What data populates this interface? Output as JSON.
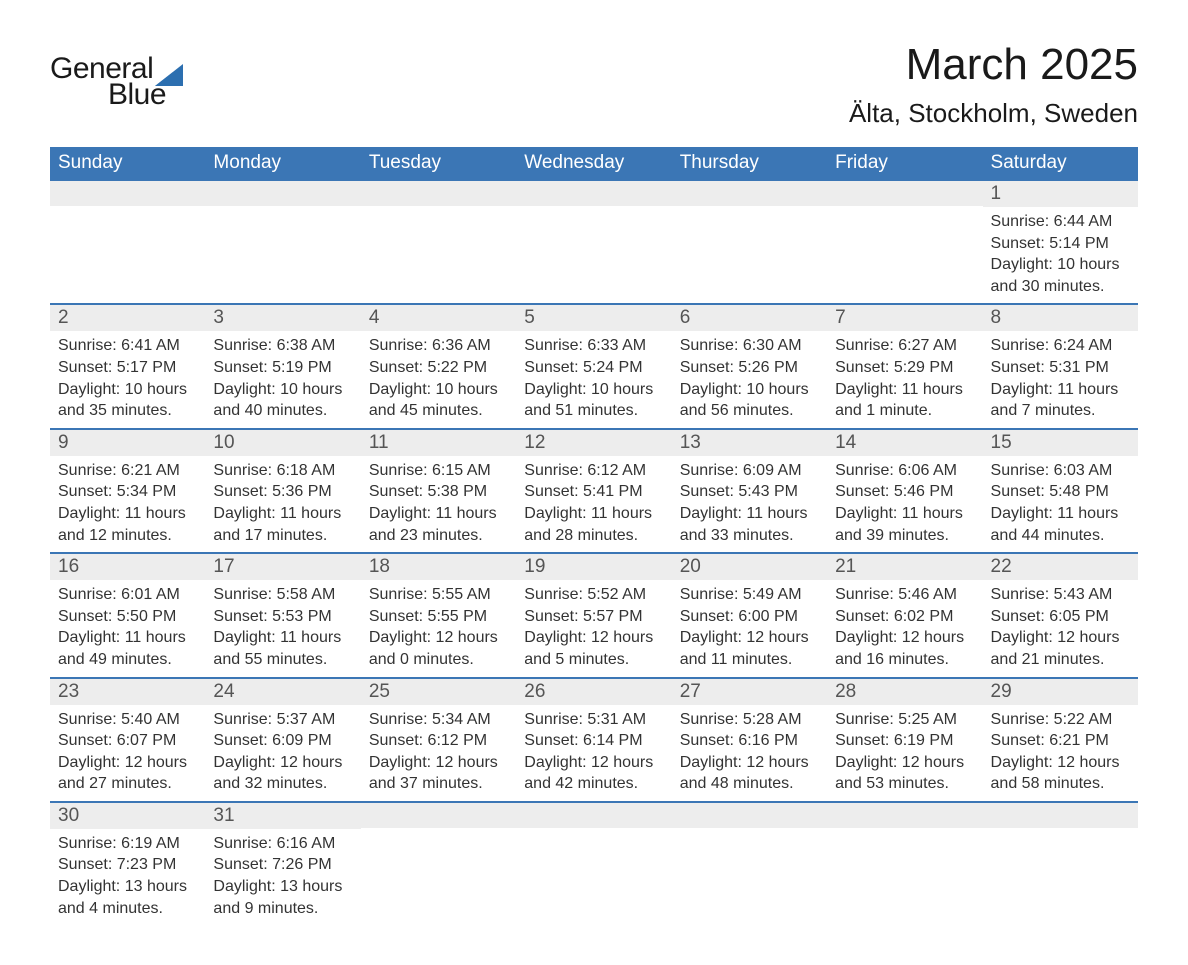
{
  "logo": {
    "text1": "General",
    "text2": "Blue",
    "shape_color": "#2c6fb0"
  },
  "header": {
    "month_title": "March 2025",
    "location": "Älta, Stockholm, Sweden"
  },
  "colors": {
    "header_bg": "#3b76b5",
    "header_text": "#ffffff",
    "daynum_bg": "#ededed",
    "daynum_text": "#555555",
    "body_text": "#333333",
    "row_border": "#3b76b5"
  },
  "day_names": [
    "Sunday",
    "Monday",
    "Tuesday",
    "Wednesday",
    "Thursday",
    "Friday",
    "Saturday"
  ],
  "weeks": [
    [
      {
        "day": "",
        "sunrise": "",
        "sunset": "",
        "daylight": ""
      },
      {
        "day": "",
        "sunrise": "",
        "sunset": "",
        "daylight": ""
      },
      {
        "day": "",
        "sunrise": "",
        "sunset": "",
        "daylight": ""
      },
      {
        "day": "",
        "sunrise": "",
        "sunset": "",
        "daylight": ""
      },
      {
        "day": "",
        "sunrise": "",
        "sunset": "",
        "daylight": ""
      },
      {
        "day": "",
        "sunrise": "",
        "sunset": "",
        "daylight": ""
      },
      {
        "day": "1",
        "sunrise": "Sunrise: 6:44 AM",
        "sunset": "Sunset: 5:14 PM",
        "daylight": "Daylight: 10 hours and 30 minutes."
      }
    ],
    [
      {
        "day": "2",
        "sunrise": "Sunrise: 6:41 AM",
        "sunset": "Sunset: 5:17 PM",
        "daylight": "Daylight: 10 hours and 35 minutes."
      },
      {
        "day": "3",
        "sunrise": "Sunrise: 6:38 AM",
        "sunset": "Sunset: 5:19 PM",
        "daylight": "Daylight: 10 hours and 40 minutes."
      },
      {
        "day": "4",
        "sunrise": "Sunrise: 6:36 AM",
        "sunset": "Sunset: 5:22 PM",
        "daylight": "Daylight: 10 hours and 45 minutes."
      },
      {
        "day": "5",
        "sunrise": "Sunrise: 6:33 AM",
        "sunset": "Sunset: 5:24 PM",
        "daylight": "Daylight: 10 hours and 51 minutes."
      },
      {
        "day": "6",
        "sunrise": "Sunrise: 6:30 AM",
        "sunset": "Sunset: 5:26 PM",
        "daylight": "Daylight: 10 hours and 56 minutes."
      },
      {
        "day": "7",
        "sunrise": "Sunrise: 6:27 AM",
        "sunset": "Sunset: 5:29 PM",
        "daylight": "Daylight: 11 hours and 1 minute."
      },
      {
        "day": "8",
        "sunrise": "Sunrise: 6:24 AM",
        "sunset": "Sunset: 5:31 PM",
        "daylight": "Daylight: 11 hours and 7 minutes."
      }
    ],
    [
      {
        "day": "9",
        "sunrise": "Sunrise: 6:21 AM",
        "sunset": "Sunset: 5:34 PM",
        "daylight": "Daylight: 11 hours and 12 minutes."
      },
      {
        "day": "10",
        "sunrise": "Sunrise: 6:18 AM",
        "sunset": "Sunset: 5:36 PM",
        "daylight": "Daylight: 11 hours and 17 minutes."
      },
      {
        "day": "11",
        "sunrise": "Sunrise: 6:15 AM",
        "sunset": "Sunset: 5:38 PM",
        "daylight": "Daylight: 11 hours and 23 minutes."
      },
      {
        "day": "12",
        "sunrise": "Sunrise: 6:12 AM",
        "sunset": "Sunset: 5:41 PM",
        "daylight": "Daylight: 11 hours and 28 minutes."
      },
      {
        "day": "13",
        "sunrise": "Sunrise: 6:09 AM",
        "sunset": "Sunset: 5:43 PM",
        "daylight": "Daylight: 11 hours and 33 minutes."
      },
      {
        "day": "14",
        "sunrise": "Sunrise: 6:06 AM",
        "sunset": "Sunset: 5:46 PM",
        "daylight": "Daylight: 11 hours and 39 minutes."
      },
      {
        "day": "15",
        "sunrise": "Sunrise: 6:03 AM",
        "sunset": "Sunset: 5:48 PM",
        "daylight": "Daylight: 11 hours and 44 minutes."
      }
    ],
    [
      {
        "day": "16",
        "sunrise": "Sunrise: 6:01 AM",
        "sunset": "Sunset: 5:50 PM",
        "daylight": "Daylight: 11 hours and 49 minutes."
      },
      {
        "day": "17",
        "sunrise": "Sunrise: 5:58 AM",
        "sunset": "Sunset: 5:53 PM",
        "daylight": "Daylight: 11 hours and 55 minutes."
      },
      {
        "day": "18",
        "sunrise": "Sunrise: 5:55 AM",
        "sunset": "Sunset: 5:55 PM",
        "daylight": "Daylight: 12 hours and 0 minutes."
      },
      {
        "day": "19",
        "sunrise": "Sunrise: 5:52 AM",
        "sunset": "Sunset: 5:57 PM",
        "daylight": "Daylight: 12 hours and 5 minutes."
      },
      {
        "day": "20",
        "sunrise": "Sunrise: 5:49 AM",
        "sunset": "Sunset: 6:00 PM",
        "daylight": "Daylight: 12 hours and 11 minutes."
      },
      {
        "day": "21",
        "sunrise": "Sunrise: 5:46 AM",
        "sunset": "Sunset: 6:02 PM",
        "daylight": "Daylight: 12 hours and 16 minutes."
      },
      {
        "day": "22",
        "sunrise": "Sunrise: 5:43 AM",
        "sunset": "Sunset: 6:05 PM",
        "daylight": "Daylight: 12 hours and 21 minutes."
      }
    ],
    [
      {
        "day": "23",
        "sunrise": "Sunrise: 5:40 AM",
        "sunset": "Sunset: 6:07 PM",
        "daylight": "Daylight: 12 hours and 27 minutes."
      },
      {
        "day": "24",
        "sunrise": "Sunrise: 5:37 AM",
        "sunset": "Sunset: 6:09 PM",
        "daylight": "Daylight: 12 hours and 32 minutes."
      },
      {
        "day": "25",
        "sunrise": "Sunrise: 5:34 AM",
        "sunset": "Sunset: 6:12 PM",
        "daylight": "Daylight: 12 hours and 37 minutes."
      },
      {
        "day": "26",
        "sunrise": "Sunrise: 5:31 AM",
        "sunset": "Sunset: 6:14 PM",
        "daylight": "Daylight: 12 hours and 42 minutes."
      },
      {
        "day": "27",
        "sunrise": "Sunrise: 5:28 AM",
        "sunset": "Sunset: 6:16 PM",
        "daylight": "Daylight: 12 hours and 48 minutes."
      },
      {
        "day": "28",
        "sunrise": "Sunrise: 5:25 AM",
        "sunset": "Sunset: 6:19 PM",
        "daylight": "Daylight: 12 hours and 53 minutes."
      },
      {
        "day": "29",
        "sunrise": "Sunrise: 5:22 AM",
        "sunset": "Sunset: 6:21 PM",
        "daylight": "Daylight: 12 hours and 58 minutes."
      }
    ],
    [
      {
        "day": "30",
        "sunrise": "Sunrise: 6:19 AM",
        "sunset": "Sunset: 7:23 PM",
        "daylight": "Daylight: 13 hours and 4 minutes."
      },
      {
        "day": "31",
        "sunrise": "Sunrise: 6:16 AM",
        "sunset": "Sunset: 7:26 PM",
        "daylight": "Daylight: 13 hours and 9 minutes."
      },
      {
        "day": "",
        "sunrise": "",
        "sunset": "",
        "daylight": ""
      },
      {
        "day": "",
        "sunrise": "",
        "sunset": "",
        "daylight": ""
      },
      {
        "day": "",
        "sunrise": "",
        "sunset": "",
        "daylight": ""
      },
      {
        "day": "",
        "sunrise": "",
        "sunset": "",
        "daylight": ""
      },
      {
        "day": "",
        "sunrise": "",
        "sunset": "",
        "daylight": ""
      }
    ]
  ]
}
